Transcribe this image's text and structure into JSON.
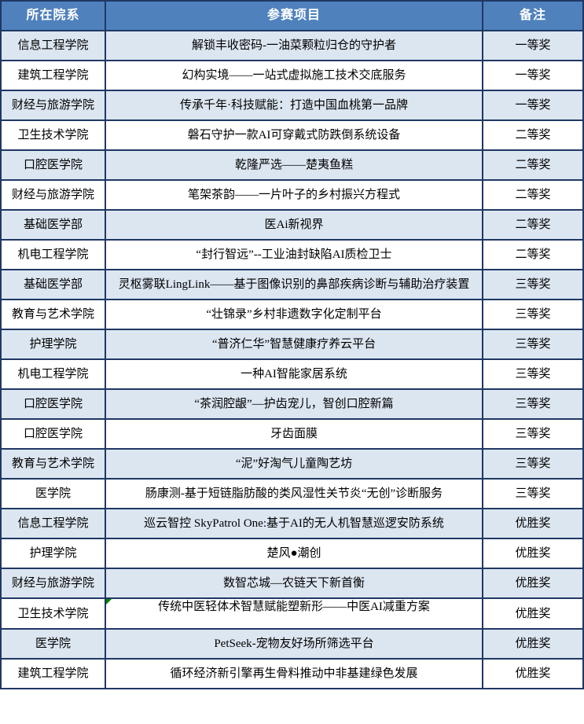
{
  "colors": {
    "header_bg": "#4F81BD",
    "header_text": "#FFFFFF",
    "row_alt_bg": "#DCE6F1",
    "row_bg": "#FFFFFF",
    "border": "#1F3864",
    "note_marker": "#008000"
  },
  "table": {
    "columns": [
      {
        "key": "department",
        "label": "所在院系"
      },
      {
        "key": "project",
        "label": "参赛项目"
      },
      {
        "key": "remark",
        "label": "备注"
      }
    ],
    "rows": [
      {
        "department": "信息工程学院",
        "project": "解锁丰收密码-一油菜颗粒归仓的守护者",
        "remark": "一等奖"
      },
      {
        "department": "建筑工程学院",
        "project": "幻构实境——一站式虚拟施工技术交底服务",
        "remark": "一等奖"
      },
      {
        "department": "财经与旅游学院",
        "project": "传承千年·科技赋能：打造中国血桃第一品牌",
        "remark": "一等奖"
      },
      {
        "department": "卫生技术学院",
        "project": "磐石守护一款AI可穿戴式防跌倒系统设备",
        "remark": "二等奖"
      },
      {
        "department": "口腔医学院",
        "project": "乾隆严选——楚夷鱼糕",
        "remark": "二等奖"
      },
      {
        "department": "财经与旅游学院",
        "project": "笔架茶韵——一片叶子的乡村振兴方程式",
        "remark": "二等奖"
      },
      {
        "department": "基础医学部",
        "project": "医Ai新视界",
        "remark": "二等奖"
      },
      {
        "department": "机电工程学院",
        "project": "“封行智远”--工业油封缺陷AI质检卫士",
        "remark": "二等奖"
      },
      {
        "department": "基础医学部",
        "project": "灵枢雾联LingLink——基于图像识别的鼻部疾病诊断与辅助治疗装置",
        "remark": "三等奖"
      },
      {
        "department": "教育与艺术学院",
        "project": "“壮锦录”乡村非遗数字化定制平台",
        "remark": "三等奖"
      },
      {
        "department": "护理学院",
        "project": "“普济仁华”智慧健康疗养云平台",
        "remark": "三等奖"
      },
      {
        "department": "机电工程学院",
        "project": "一种AI智能家居系统",
        "remark": "三等奖"
      },
      {
        "department": "口腔医学院",
        "project": "“茶润腔龈”—护齿宠儿，智创口腔新篇",
        "remark": "三等奖"
      },
      {
        "department": "口腔医学院",
        "project": "牙齿面膜",
        "remark": "三等奖"
      },
      {
        "department": "教育与艺术学院",
        "project": "“泥”好淘气儿童陶艺坊",
        "remark": "三等奖"
      },
      {
        "department": "医学院",
        "project": "肠康测-基于短链脂肪酸的类风湿性关节炎“无创”诊断服务",
        "remark": "三等奖"
      },
      {
        "department": "信息工程学院",
        "project": "巡云智控 SkyPatrol One:基于AI的无人机智慧巡逻安防系统",
        "remark": "优胜奖"
      },
      {
        "department": "护理学院",
        "project": "楚风●潮创",
        "remark": "优胜奖"
      },
      {
        "department": "财经与旅游学院",
        "project": "数智芯城—农链天下新首衡",
        "remark": "优胜奖"
      },
      {
        "department": "卫生技术学院",
        "project": "传统中医轻体术智慧赋能塑新形——中医AI减重方案",
        "remark": "优胜奖",
        "has_note_marker": true,
        "project_valign": "top"
      },
      {
        "department": "医学院",
        "project": "PetSeek-宠物友好场所筛选平台",
        "remark": "优胜奖"
      },
      {
        "department": "建筑工程学院",
        "project": "循环经济新引擎再生骨料推动中非基建绿色发展",
        "remark": "优胜奖"
      }
    ]
  }
}
